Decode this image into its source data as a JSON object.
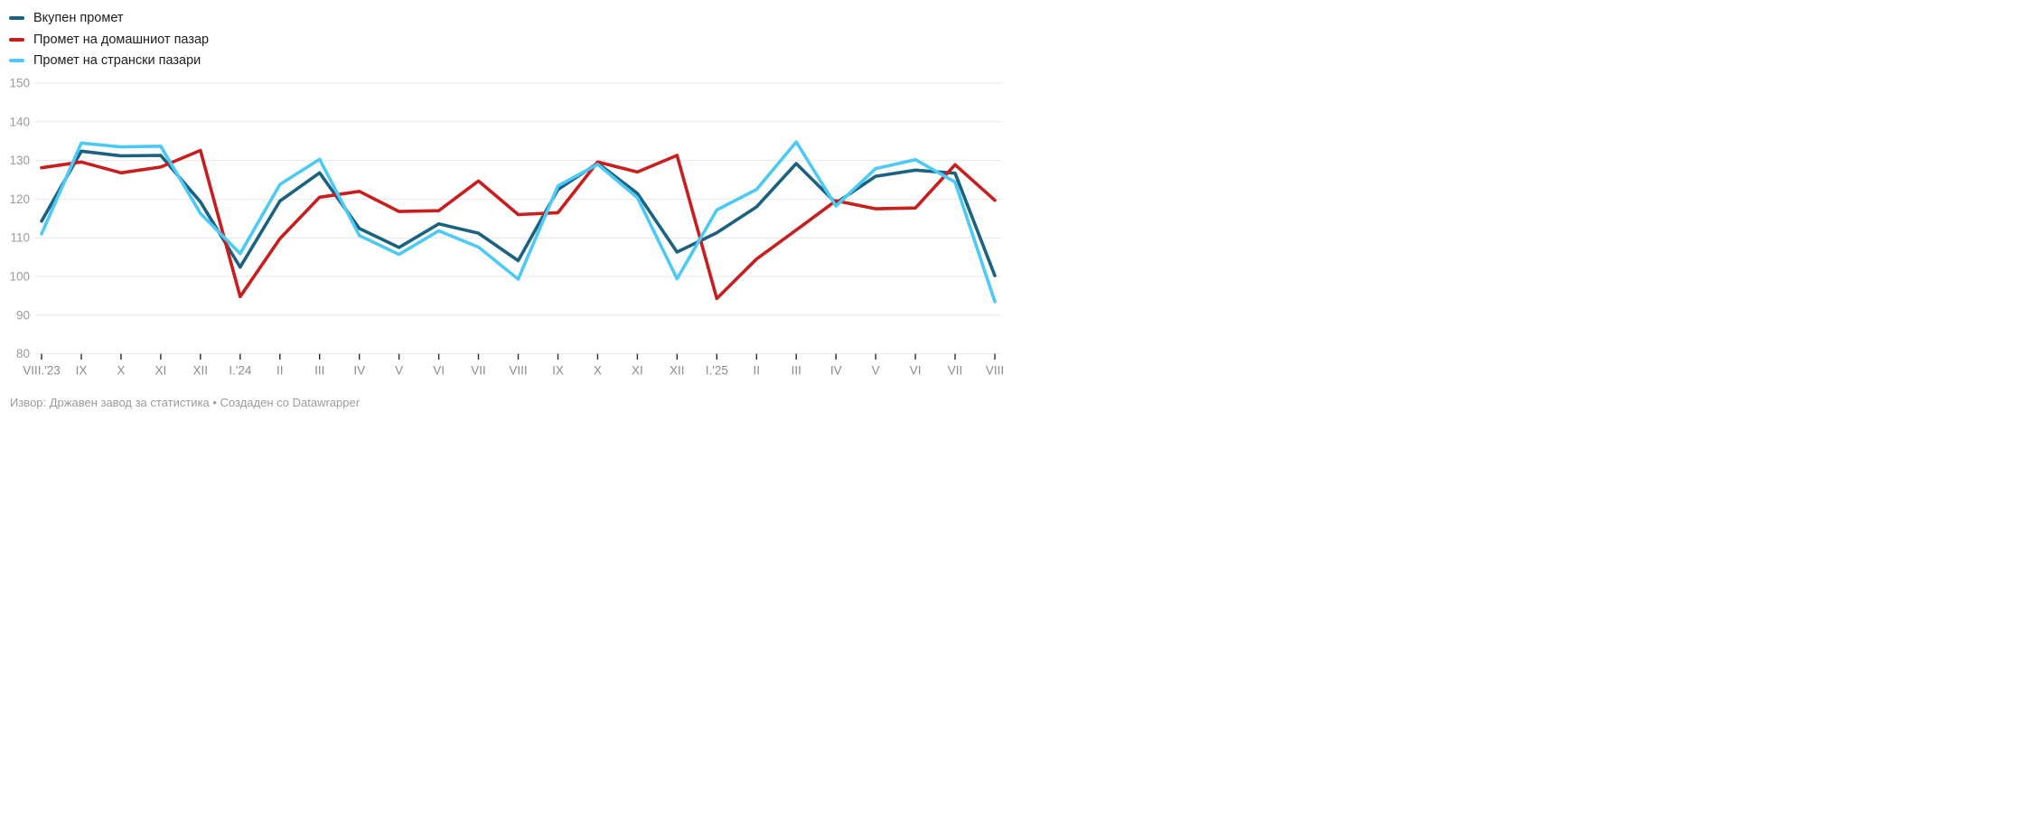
{
  "legend": {
    "items": [
      {
        "label": "Вкупен промет",
        "color": "#1b6180"
      },
      {
        "label": "Промет на домашниот пазар",
        "color": "#c81e1e"
      },
      {
        "label": "Промет на странски пазари",
        "color": "#4dc9f5"
      }
    ]
  },
  "footer": {
    "text": "Извор: Државен завод за статистика • Создаден со Datawrapper"
  },
  "colors": {
    "gridline": "#e7e7e7",
    "tick": "#2b2b2b",
    "y_label": "#9b9b9b",
    "x_label": "#8c8c8c"
  },
  "chart_data": {
    "type": "line",
    "categories": [
      "VIII.'23",
      "IX",
      "X",
      "XI",
      "XII",
      "I.'24",
      "II",
      "III",
      "IV",
      "V",
      "VI",
      "VII",
      "VIII",
      "IX",
      "X",
      "XI",
      "XII",
      "I.'25",
      "II",
      "III",
      "IV",
      "V",
      "VI",
      "VII",
      "VIII"
    ],
    "series": [
      {
        "name": "Вкупен промет",
        "color": "#1b6180",
        "values": [
          114.3,
          132.4,
          131.2,
          131.3,
          119.3,
          102.4,
          119.5,
          126.8,
          112.4,
          107.5,
          113.6,
          111.2,
          104.1,
          122.5,
          129.3,
          121.5,
          106.3,
          111.3,
          118.0,
          129.2,
          119.0,
          125.9,
          127.5,
          126.7,
          100.2
        ]
      },
      {
        "name": "Промет на домашниот пазар",
        "color": "#c81e1e",
        "values": [
          128.1,
          129.6,
          126.8,
          128.3,
          132.6,
          94.8,
          109.8,
          120.5,
          122.0,
          116.8,
          117.0,
          124.7,
          116.0,
          116.5,
          129.6,
          127.0,
          131.3,
          94.3,
          104.5,
          112.0,
          119.6,
          117.5,
          117.7,
          128.9,
          119.7
        ]
      },
      {
        "name": "Промет на странски пазари",
        "color": "#4dc9f5",
        "values": [
          111.0,
          134.5,
          133.5,
          133.7,
          116.3,
          105.9,
          123.8,
          130.3,
          110.6,
          105.7,
          111.8,
          107.6,
          99.3,
          123.4,
          129.0,
          120.4,
          99.4,
          117.2,
          122.5,
          134.8,
          118.2,
          127.9,
          130.2,
          124.4,
          93.5
        ]
      }
    ],
    "title": "",
    "xlabel": "",
    "ylabel": "",
    "ylim": [
      80,
      150
    ],
    "yticks": [
      80,
      90,
      100,
      110,
      120,
      130,
      140,
      150
    ],
    "grid": "horizontal",
    "legend_position": "top-left"
  }
}
